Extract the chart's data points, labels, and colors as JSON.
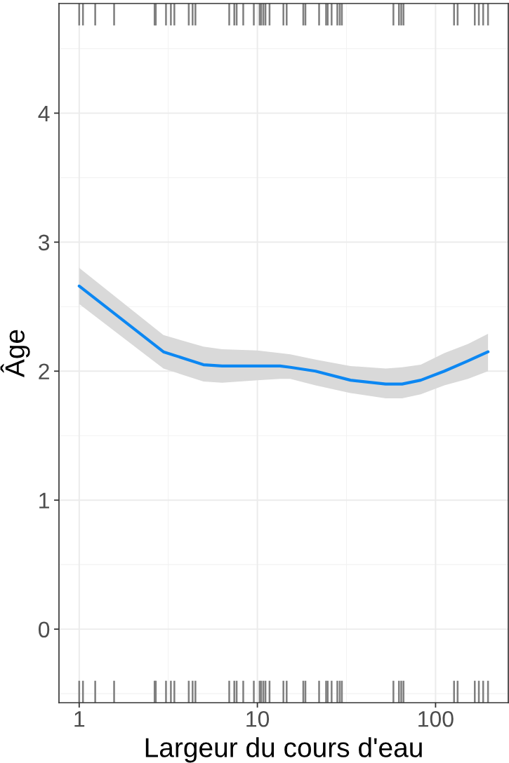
{
  "chart_data": {
    "type": "line",
    "xlabel": "Largeur du cours d'eau",
    "ylabel": "Âge",
    "log": "x",
    "xlim": [
      0.77,
      256
    ],
    "xticks": [
      1,
      10,
      100
    ],
    "ylim": [
      -0.57,
      4.85
    ],
    "yticks": [
      0,
      1,
      2,
      3,
      4
    ],
    "grid": true,
    "series": [
      {
        "color": "#0c87f2",
        "x": [
          1,
          2.97,
          4.98,
          6.34,
          10,
          13.4,
          15.3,
          21.2,
          33.3,
          52.5,
          64.9,
          82.6,
          112,
          152,
          197
        ],
        "values": [
          2.66,
          2.15,
          2.05,
          2.04,
          2.04,
          2.04,
          2.03,
          2.0,
          1.93,
          1.9,
          1.9,
          1.93,
          2.0,
          2.08,
          2.15
        ],
        "lower": [
          2.52,
          2.02,
          1.92,
          1.91,
          1.93,
          1.94,
          1.94,
          1.89,
          1.83,
          1.79,
          1.79,
          1.82,
          1.89,
          1.94,
          2.0
        ],
        "upper": [
          2.8,
          2.28,
          2.19,
          2.17,
          2.16,
          2.14,
          2.13,
          2.09,
          2.04,
          2.02,
          2.03,
          2.05,
          2.14,
          2.21,
          2.29
        ]
      },
      {
        "type": "bar",
        "color": "#7f7f7f",
        "x": [
          1.0,
          1.05,
          1.23,
          1.57,
          2.65,
          2.69,
          3.07,
          3.27,
          3.42,
          4.12,
          4.33,
          4.49,
          6.95,
          7.42,
          7.65,
          8.33,
          9.55,
          10.3,
          10.5,
          10.8,
          11.1,
          11.7,
          14.0,
          14.6,
          18.1,
          18.6,
          22.2,
          24.3,
          24.8,
          26.1,
          28.1,
          29.0,
          29.8,
          58.0,
          62.3,
          64.2,
          66.1,
          127,
          133,
          166,
          175,
          185,
          197
        ],
        "base": [
          4.68,
          4.68,
          4.68,
          4.68,
          4.68,
          4.68,
          4.68,
          4.68,
          4.68,
          4.68,
          4.68,
          4.68,
          4.68,
          4.68,
          4.68,
          4.68,
          4.68,
          4.68,
          4.68,
          4.68,
          4.68,
          4.68,
          4.68,
          4.68,
          4.68,
          4.68,
          4.68,
          4.68,
          4.68,
          4.68,
          4.68,
          4.68,
          4.68,
          4.68,
          4.68,
          4.68,
          4.68,
          4.68,
          4.68,
          4.68,
          4.68,
          4.68,
          4.68
        ],
        "values": [
          0.17,
          0.17,
          0.17,
          0.17,
          0.17,
          0.17,
          0.17,
          0.17,
          0.17,
          0.17,
          0.17,
          0.17,
          0.17,
          0.17,
          0.17,
          0.17,
          0.17,
          0.17,
          0.17,
          0.17,
          0.17,
          0.17,
          0.17,
          0.17,
          0.17,
          0.17,
          0.17,
          0.17,
          0.17,
          0.17,
          0.17,
          0.17,
          0.17,
          0.17,
          0.17,
          0.17,
          0.17,
          0.17,
          0.17,
          0.17,
          0.17,
          0.17,
          0.17
        ]
      },
      {
        "type": "bar",
        "color": "#7f7f7f",
        "x": [
          1.0,
          1.05,
          1.23,
          1.57,
          2.65,
          2.69,
          3.07,
          3.27,
          3.42,
          4.12,
          4.33,
          4.49,
          6.95,
          7.42,
          7.65,
          8.33,
          9.55,
          10.3,
          10.5,
          10.8,
          11.1,
          11.7,
          14.0,
          14.6,
          18.1,
          18.6,
          22.2,
          24.3,
          24.8,
          26.1,
          28.1,
          29.0,
          29.8,
          58.0,
          62.3,
          64.2,
          66.1,
          127,
          133,
          166,
          175,
          185,
          197
        ],
        "base": [
          -0.57,
          -0.57,
          -0.57,
          -0.57,
          -0.57,
          -0.57,
          -0.57,
          -0.57,
          -0.57,
          -0.57,
          -0.57,
          -0.57,
          -0.57,
          -0.57,
          -0.57,
          -0.57,
          -0.57,
          -0.57,
          -0.57,
          -0.57,
          -0.57,
          -0.57,
          -0.57,
          -0.57,
          -0.57,
          -0.57,
          -0.57,
          -0.57,
          -0.57,
          -0.57,
          -0.57,
          -0.57,
          -0.57,
          -0.57,
          -0.57,
          -0.57,
          -0.57,
          -0.57,
          -0.57,
          -0.57,
          -0.57,
          -0.57,
          -0.57
        ],
        "values": [
          0.17,
          0.17,
          0.17,
          0.17,
          0.17,
          0.17,
          0.17,
          0.17,
          0.17,
          0.17,
          0.17,
          0.17,
          0.17,
          0.17,
          0.17,
          0.17,
          0.17,
          0.17,
          0.17,
          0.17,
          0.17,
          0.17,
          0.17,
          0.17,
          0.17,
          0.17,
          0.17,
          0.17,
          0.17,
          0.17,
          0.17,
          0.17,
          0.17,
          0.17,
          0.17,
          0.17,
          0.17,
          0.17,
          0.17,
          0.17,
          0.17,
          0.17,
          0.17
        ]
      }
    ]
  }
}
